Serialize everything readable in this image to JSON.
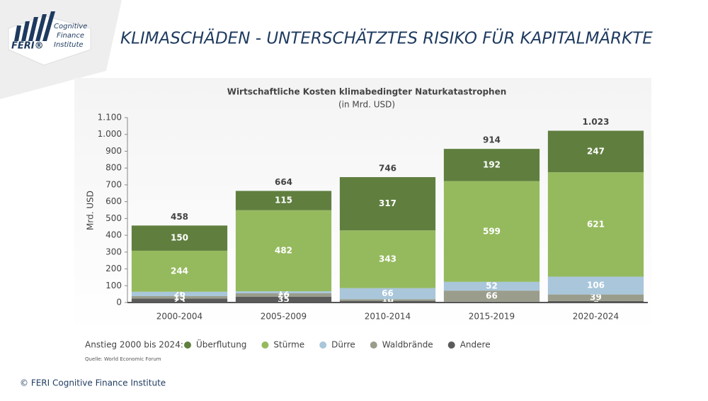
{
  "header": {
    "title": "KLIMASCHÄDEN - UNTERSCHÄTZTES RISIKO FÜR KAPITALMÄRKTE",
    "logo_brand": "FERI®",
    "logo_lines": [
      "Cognitive",
      "Finance",
      "Institute"
    ]
  },
  "chart_data": {
    "type": "stacked-bar",
    "title": "Wirtschaftliche Kosten klimabedingter Naturkatastrophen",
    "subtitle": "(in Mrd. USD)",
    "y_label": "Mrd. USD",
    "categories": [
      "2000-2004",
      "2005-2009",
      "2010-2014",
      "2015-2019",
      "2020-2024"
    ],
    "series": [
      {
        "name": "Andere",
        "color": "#5b5b5b",
        "values": [
          23,
          35,
          10,
          5,
          9
        ]
      },
      {
        "name": "Waldbrände",
        "color": "#9a9d8c",
        "values": [
          15,
          20,
          10,
          66,
          39
        ]
      },
      {
        "name": "Dürre",
        "color": "#a9c6da",
        "values": [
          26,
          12,
          66,
          52,
          106
        ]
      },
      {
        "name": "Stürme",
        "color": "#95ba5e",
        "values": [
          244,
          482,
          343,
          599,
          621
        ]
      },
      {
        "name": "Überflutung",
        "color": "#607f3f",
        "values": [
          150,
          115,
          317,
          192,
          247
        ]
      }
    ],
    "totals": {
      "values": [
        458,
        664,
        746,
        914,
        1023
      ],
      "value_labels": [
        "458",
        "664",
        "746",
        "914",
        "1.023"
      ]
    },
    "ylim": [
      0,
      1100
    ],
    "yticks": [
      0,
      100,
      200,
      300,
      400,
      500,
      600,
      700,
      800,
      900,
      {
        "value": 1000,
        "label": "1.000"
      },
      {
        "value": 1100,
        "label": "1.100"
      }
    ],
    "legend_title": "Anstieg 2000 bis 2024:",
    "legend_order": [
      4,
      3,
      2,
      1,
      0
    ],
    "source": "Quelle: World Economic Forum"
  },
  "footer": "© FERI Cognitive Finance Institute"
}
